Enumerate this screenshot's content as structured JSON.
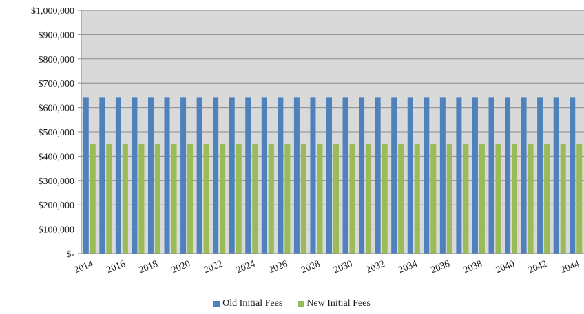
{
  "chart_data": {
    "type": "bar",
    "categories": [
      "2014",
      "2015",
      "2016",
      "2017",
      "2018",
      "2019",
      "2020",
      "2021",
      "2022",
      "2023",
      "2024",
      "2025",
      "2026",
      "2027",
      "2028",
      "2029",
      "2030",
      "2031",
      "2032",
      "2033",
      "2034",
      "2035",
      "2036",
      "2037",
      "2038",
      "2039",
      "2040",
      "2041",
      "2042",
      "2043",
      "2044"
    ],
    "x_tick_labels": [
      "2014",
      "2016",
      "2018",
      "2020",
      "2022",
      "2024",
      "2026",
      "2028",
      "2030",
      "2032",
      "2034",
      "2036",
      "2038",
      "2040",
      "2042",
      "2044"
    ],
    "series": [
      {
        "name": "Old Initial Fees",
        "color": "#4f81bd",
        "values": [
          643000,
          643000,
          643000,
          643000,
          643000,
          643000,
          643000,
          643000,
          643000,
          643000,
          643000,
          643000,
          643000,
          643000,
          643000,
          643000,
          643000,
          643000,
          643000,
          643000,
          643000,
          643000,
          643000,
          643000,
          643000,
          643000,
          643000,
          643000,
          643000,
          643000,
          643000
        ]
      },
      {
        "name": "New Initial Fees",
        "color": "#9bbb59",
        "values": [
          450000,
          450000,
          450000,
          450000,
          450000,
          450000,
          450000,
          450000,
          450000,
          450000,
          450000,
          450000,
          450000,
          450000,
          450000,
          450000,
          450000,
          450000,
          450000,
          450000,
          450000,
          450000,
          450000,
          450000,
          450000,
          450000,
          450000,
          450000,
          450000,
          450000,
          450000
        ]
      }
    ],
    "y_tick_labels": [
      "$-",
      "$100,000",
      "$200,000",
      "$300,000",
      "$400,000",
      "$500,000",
      "$600,000",
      "$700,000",
      "$800,000",
      "$900,000",
      "$1,000,000"
    ],
    "ylim": [
      0,
      1000000
    ],
    "plot_background": "#d9d9d9",
    "gridlines": true,
    "legend_position": "bottom"
  }
}
